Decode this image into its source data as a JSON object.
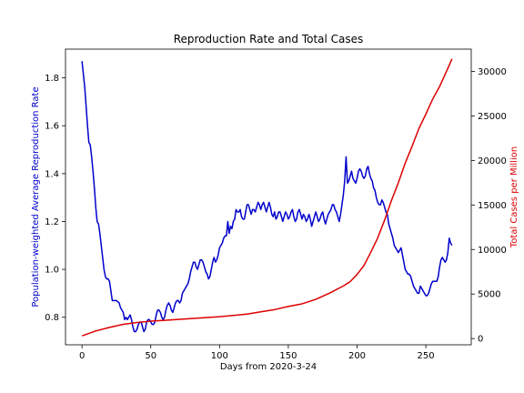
{
  "chart_data": {
    "type": "line",
    "title": "Reproduction Rate and Total Cases",
    "xlabel": "Days from 2020-3-24",
    "ylabel_left": "Population-weighted Average Reproduction Rate",
    "ylabel_right": "Total Cases per Million",
    "xlim": [
      -12,
      283
    ],
    "ylim_left": [
      0.685,
      1.92
    ],
    "ylim_right": [
      -700,
      32500
    ],
    "x_ticks": [
      0,
      50,
      100,
      150,
      200,
      250
    ],
    "y_left_ticks": [
      0.8,
      1.0,
      1.2,
      1.4,
      1.6,
      1.8
    ],
    "y_right_ticks": [
      0,
      5000,
      10000,
      15000,
      20000,
      25000,
      30000
    ],
    "grid": false,
    "colors": {
      "left": "#0000cc",
      "right": "#dd0000"
    },
    "series": [
      {
        "axis": "left",
        "color": "#0000cc",
        "points": [
          [
            0,
            1.87
          ],
          [
            2,
            1.76
          ],
          [
            3,
            1.68
          ],
          [
            4,
            1.6
          ],
          [
            5,
            1.53
          ],
          [
            6,
            1.52
          ],
          [
            7,
            1.47
          ],
          [
            8,
            1.41
          ],
          [
            9,
            1.34
          ],
          [
            10,
            1.26
          ],
          [
            11,
            1.2
          ],
          [
            12,
            1.19
          ],
          [
            13,
            1.15
          ],
          [
            14,
            1.1
          ],
          [
            15,
            1.05
          ],
          [
            16,
            1.0
          ],
          [
            17,
            0.97
          ],
          [
            18,
            0.96
          ],
          [
            19,
            0.96
          ],
          [
            20,
            0.95
          ],
          [
            21,
            0.91
          ],
          [
            22,
            0.87
          ],
          [
            23,
            0.87
          ],
          [
            24,
            0.87
          ],
          [
            25,
            0.87
          ],
          [
            27,
            0.86
          ],
          [
            28,
            0.84
          ],
          [
            29,
            0.83
          ],
          [
            30,
            0.82
          ],
          [
            31,
            0.79
          ],
          [
            32,
            0.8
          ],
          [
            33,
            0.79
          ],
          [
            34,
            0.8
          ],
          [
            35,
            0.81
          ],
          [
            36,
            0.79
          ],
          [
            37,
            0.76
          ],
          [
            38,
            0.74
          ],
          [
            39,
            0.74
          ],
          [
            40,
            0.75
          ],
          [
            41,
            0.77
          ],
          [
            42,
            0.78
          ],
          [
            43,
            0.78
          ],
          [
            44,
            0.76
          ],
          [
            45,
            0.74
          ],
          [
            46,
            0.75
          ],
          [
            47,
            0.78
          ],
          [
            48,
            0.79
          ],
          [
            49,
            0.79
          ],
          [
            50,
            0.78
          ],
          [
            51,
            0.77
          ],
          [
            52,
            0.77
          ],
          [
            53,
            0.78
          ],
          [
            54,
            0.81
          ],
          [
            55,
            0.83
          ],
          [
            56,
            0.83
          ],
          [
            57,
            0.82
          ],
          [
            58,
            0.8
          ],
          [
            59,
            0.79
          ],
          [
            60,
            0.8
          ],
          [
            61,
            0.83
          ],
          [
            62,
            0.85
          ],
          [
            63,
            0.86
          ],
          [
            64,
            0.85
          ],
          [
            65,
            0.83
          ],
          [
            66,
            0.82
          ],
          [
            67,
            0.84
          ],
          [
            68,
            0.86
          ],
          [
            69,
            0.87
          ],
          [
            70,
            0.87
          ],
          [
            71,
            0.86
          ],
          [
            72,
            0.87
          ],
          [
            73,
            0.9
          ],
          [
            74,
            0.91
          ],
          [
            75,
            0.92
          ],
          [
            76,
            0.93
          ],
          [
            77,
            0.94
          ],
          [
            78,
            0.96
          ],
          [
            79,
            0.99
          ],
          [
            80,
            1.01
          ],
          [
            81,
            1.03
          ],
          [
            82,
            1.03
          ],
          [
            83,
            1.01
          ],
          [
            84,
            1.0
          ],
          [
            85,
            1.02
          ],
          [
            86,
            1.04
          ],
          [
            87,
            1.04
          ],
          [
            88,
            1.03
          ],
          [
            89,
            1.01
          ],
          [
            90,
            0.99
          ],
          [
            91,
            0.98
          ],
          [
            92,
            0.96
          ],
          [
            93,
            0.97
          ],
          [
            94,
            1.0
          ],
          [
            95,
            1.03
          ],
          [
            96,
            1.05
          ],
          [
            97,
            1.03
          ],
          [
            98,
            1.04
          ],
          [
            99,
            1.06
          ],
          [
            100,
            1.09
          ],
          [
            101,
            1.1
          ],
          [
            102,
            1.11
          ],
          [
            103,
            1.13
          ],
          [
            104,
            1.14
          ],
          [
            105,
            1.14
          ],
          [
            106,
            1.2
          ],
          [
            107,
            1.15
          ],
          [
            108,
            1.18
          ],
          [
            109,
            1.17
          ],
          [
            110,
            1.2
          ],
          [
            111,
            1.21
          ],
          [
            112,
            1.25
          ],
          [
            113,
            1.24
          ],
          [
            114,
            1.24
          ],
          [
            115,
            1.25
          ],
          [
            116,
            1.22
          ],
          [
            117,
            1.21
          ],
          [
            118,
            1.21
          ],
          [
            119,
            1.24
          ],
          [
            120,
            1.27
          ],
          [
            121,
            1.27
          ],
          [
            122,
            1.25
          ],
          [
            123,
            1.23
          ],
          [
            124,
            1.25
          ],
          [
            125,
            1.25
          ],
          [
            126,
            1.24
          ],
          [
            127,
            1.26
          ],
          [
            128,
            1.28
          ],
          [
            129,
            1.27
          ],
          [
            130,
            1.25
          ],
          [
            131,
            1.27
          ],
          [
            132,
            1.28
          ],
          [
            133,
            1.26
          ],
          [
            134,
            1.24
          ],
          [
            135,
            1.26
          ],
          [
            136,
            1.28
          ],
          [
            137,
            1.26
          ],
          [
            138,
            1.23
          ],
          [
            139,
            1.22
          ],
          [
            140,
            1.24
          ],
          [
            141,
            1.21
          ],
          [
            142,
            1.22
          ],
          [
            143,
            1.24
          ],
          [
            144,
            1.24
          ],
          [
            145,
            1.22
          ],
          [
            146,
            1.2
          ],
          [
            147,
            1.22
          ],
          [
            148,
            1.24
          ],
          [
            149,
            1.23
          ],
          [
            150,
            1.21
          ],
          [
            151,
            1.22
          ],
          [
            152,
            1.24
          ],
          [
            153,
            1.25
          ],
          [
            154,
            1.22
          ],
          [
            155,
            1.2
          ],
          [
            156,
            1.21
          ],
          [
            157,
            1.24
          ],
          [
            158,
            1.25
          ],
          [
            159,
            1.23
          ],
          [
            160,
            1.21
          ],
          [
            161,
            1.23
          ],
          [
            162,
            1.22
          ],
          [
            163,
            1.2
          ],
          [
            164,
            1.21
          ],
          [
            165,
            1.23
          ],
          [
            166,
            1.21
          ],
          [
            167,
            1.18
          ],
          [
            168,
            1.2
          ],
          [
            169,
            1.22
          ],
          [
            170,
            1.24
          ],
          [
            171,
            1.22
          ],
          [
            172,
            1.2
          ],
          [
            173,
            1.21
          ],
          [
            174,
            1.23
          ],
          [
            175,
            1.24
          ],
          [
            176,
            1.21
          ],
          [
            177,
            1.19
          ],
          [
            178,
            1.21
          ],
          [
            179,
            1.23
          ],
          [
            180,
            1.24
          ],
          [
            181,
            1.25
          ],
          [
            182,
            1.27
          ],
          [
            183,
            1.27
          ],
          [
            184,
            1.25
          ],
          [
            185,
            1.24
          ],
          [
            186,
            1.22
          ],
          [
            187,
            1.2
          ],
          [
            188,
            1.23
          ],
          [
            189,
            1.27
          ],
          [
            190,
            1.31
          ],
          [
            191,
            1.37
          ],
          [
            192,
            1.47
          ],
          [
            193,
            1.36
          ],
          [
            194,
            1.37
          ],
          [
            195,
            1.39
          ],
          [
            196,
            1.41
          ],
          [
            197,
            1.38
          ],
          [
            198,
            1.37
          ],
          [
            199,
            1.36
          ],
          [
            200,
            1.38
          ],
          [
            201,
            1.41
          ],
          [
            202,
            1.42
          ],
          [
            203,
            1.41
          ],
          [
            204,
            1.39
          ],
          [
            205,
            1.38
          ],
          [
            206,
            1.39
          ],
          [
            207,
            1.42
          ],
          [
            208,
            1.43
          ],
          [
            209,
            1.4
          ],
          [
            210,
            1.38
          ],
          [
            211,
            1.37
          ],
          [
            212,
            1.34
          ],
          [
            213,
            1.33
          ],
          [
            214,
            1.3
          ],
          [
            215,
            1.28
          ],
          [
            216,
            1.27
          ],
          [
            217,
            1.27
          ],
          [
            218,
            1.29
          ],
          [
            219,
            1.28
          ],
          [
            220,
            1.26
          ],
          [
            221,
            1.24
          ],
          [
            222,
            1.23
          ],
          [
            223,
            1.19
          ],
          [
            224,
            1.17
          ],
          [
            225,
            1.15
          ],
          [
            226,
            1.13
          ],
          [
            227,
            1.1
          ],
          [
            228,
            1.09
          ],
          [
            229,
            1.08
          ],
          [
            230,
            1.07
          ],
          [
            231,
            1.08
          ],
          [
            232,
            1.09
          ],
          [
            233,
            1.06
          ],
          [
            234,
            1.03
          ],
          [
            235,
            1.0
          ],
          [
            236,
            0.99
          ],
          [
            237,
            0.98
          ],
          [
            238,
            0.98
          ],
          [
            239,
            0.97
          ],
          [
            240,
            0.95
          ],
          [
            241,
            0.93
          ],
          [
            242,
            0.92
          ],
          [
            243,
            0.91
          ],
          [
            244,
            0.9
          ],
          [
            245,
            0.9
          ],
          [
            246,
            0.93
          ],
          [
            247,
            0.92
          ],
          [
            248,
            0.91
          ],
          [
            249,
            0.9
          ],
          [
            250,
            0.89
          ],
          [
            251,
            0.89
          ],
          [
            252,
            0.9
          ],
          [
            253,
            0.92
          ],
          [
            254,
            0.94
          ],
          [
            255,
            0.95
          ],
          [
            256,
            0.95
          ],
          [
            257,
            0.95
          ],
          [
            258,
            0.95
          ],
          [
            259,
            0.97
          ],
          [
            260,
            1.01
          ],
          [
            261,
            1.04
          ],
          [
            262,
            1.05
          ],
          [
            263,
            1.04
          ],
          [
            264,
            1.03
          ],
          [
            265,
            1.04
          ],
          [
            266,
            1.07
          ],
          [
            267,
            1.13
          ],
          [
            268,
            1.11
          ],
          [
            269,
            1.1
          ]
        ]
      },
      {
        "axis": "right",
        "color": "#dd0000",
        "points": [
          [
            0,
            300
          ],
          [
            10,
            850
          ],
          [
            20,
            1250
          ],
          [
            30,
            1600
          ],
          [
            40,
            1800
          ],
          [
            50,
            1950
          ],
          [
            60,
            2050
          ],
          [
            70,
            2150
          ],
          [
            80,
            2250
          ],
          [
            90,
            2350
          ],
          [
            100,
            2450
          ],
          [
            110,
            2600
          ],
          [
            120,
            2750
          ],
          [
            130,
            3000
          ],
          [
            140,
            3250
          ],
          [
            150,
            3600
          ],
          [
            160,
            3900
          ],
          [
            170,
            4400
          ],
          [
            180,
            5100
          ],
          [
            190,
            5900
          ],
          [
            195,
            6400
          ],
          [
            200,
            7200
          ],
          [
            205,
            8200
          ],
          [
            210,
            9700
          ],
          [
            215,
            11300
          ],
          [
            220,
            13300
          ],
          [
            225,
            15500
          ],
          [
            230,
            17500
          ],
          [
            235,
            19700
          ],
          [
            240,
            21600
          ],
          [
            245,
            23600
          ],
          [
            250,
            25200
          ],
          [
            255,
            26900
          ],
          [
            260,
            28300
          ],
          [
            265,
            30000
          ],
          [
            269,
            31400
          ]
        ]
      }
    ]
  }
}
